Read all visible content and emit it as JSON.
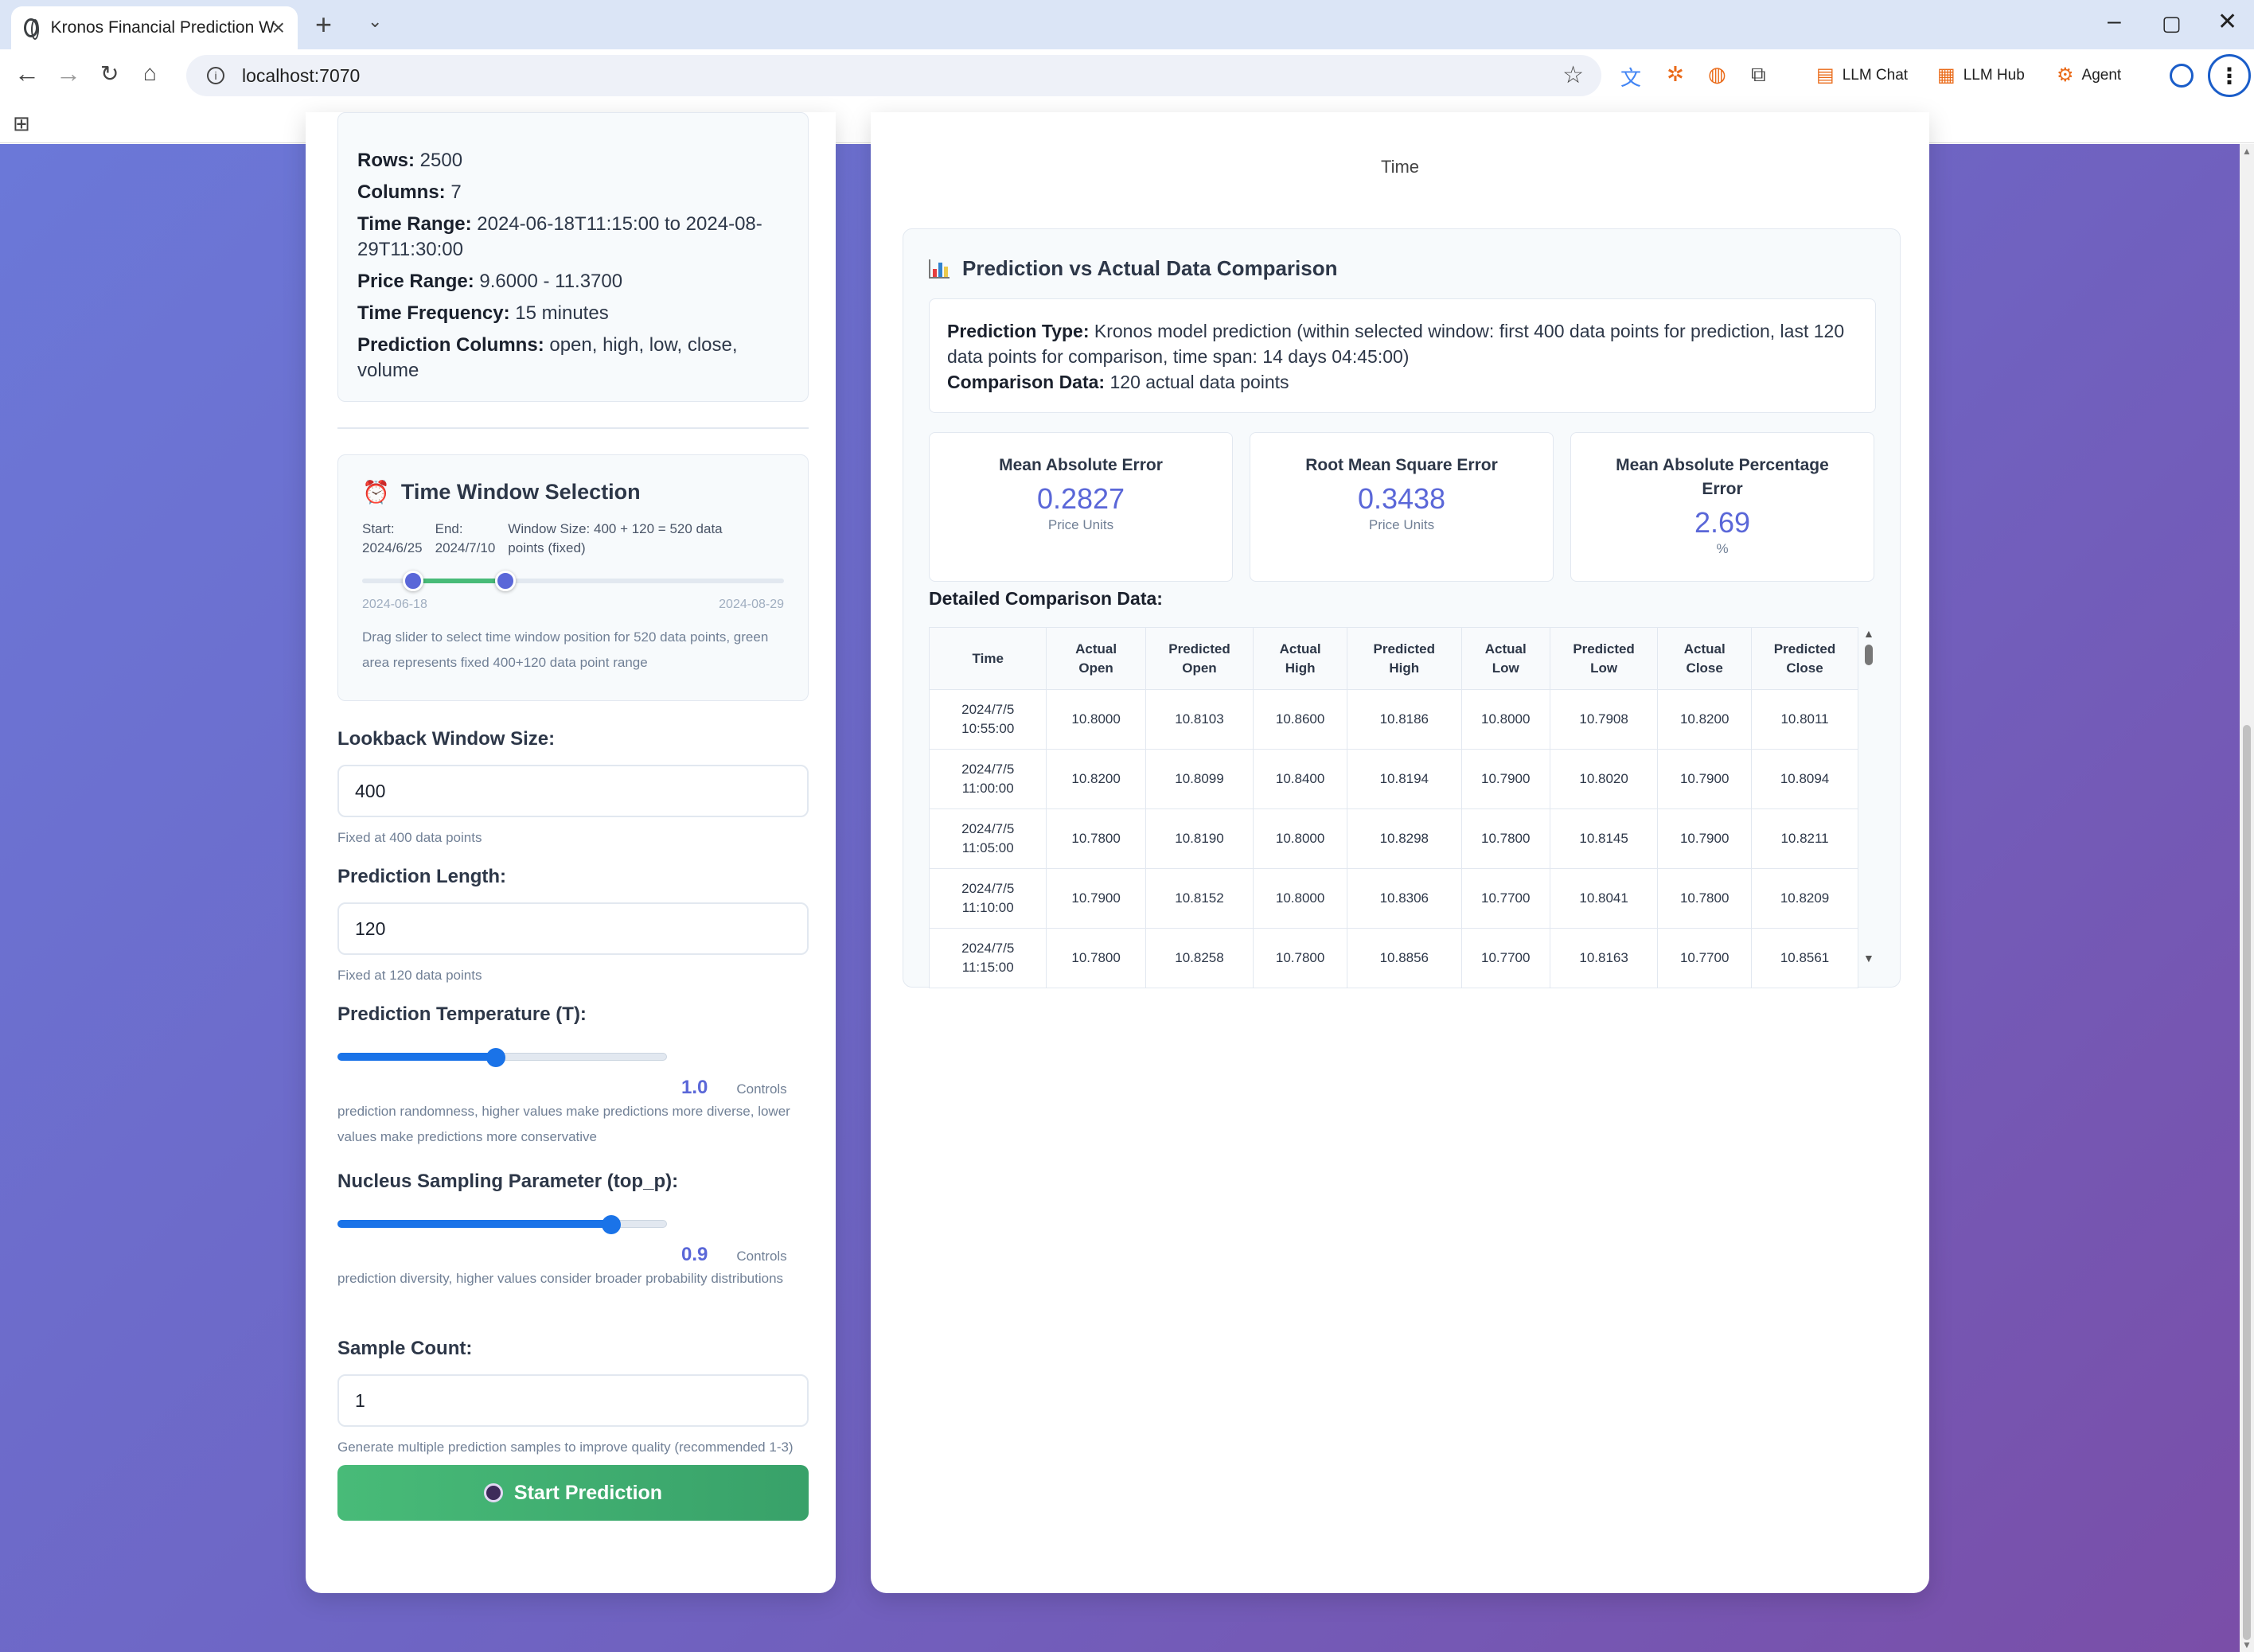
{
  "browser": {
    "tab_title": "Kronos Financial Prediction W",
    "url": "localhost:7070",
    "bookmarks": [
      {
        "label": "LLM Chat",
        "icon": "chat-icon"
      },
      {
        "label": "LLM Hub",
        "icon": "hub-icon"
      },
      {
        "label": "Agent",
        "icon": "agent-icon"
      }
    ]
  },
  "data_info": {
    "rows_label": "Rows:",
    "rows": "2500",
    "columns_label": "Columns:",
    "columns": "7",
    "time_range_label": "Time Range:",
    "time_range": "2024-06-18T11:15:00 to 2024-08-29T11:30:00",
    "price_range_label": "Price Range:",
    "price_range": "9.6000 - 11.3700",
    "time_frequency_label": "Time Frequency:",
    "time_frequency": "15 minutes",
    "prediction_columns_label": "Prediction Columns:",
    "prediction_columns": "open, high, low, close, volume"
  },
  "time_window": {
    "title": "Time Window Selection",
    "start_label": "Start:",
    "start": "2024/6/25",
    "end_label": "End:",
    "end": "2024/7/10",
    "window_size": "Window Size: 400 + 120 = 520 data points (fixed)",
    "tick_start": "2024-06-18",
    "tick_end": "2024-08-29",
    "range_start_fraction": 0.12,
    "range_end_fraction": 0.34,
    "description": "Drag slider to select time window position for 520 data points, green area represents fixed 400+120 data point range"
  },
  "lookback": {
    "label": "Lookback Window Size:",
    "value": "400",
    "hint": "Fixed at 400 data points"
  },
  "pred_length": {
    "label": "Prediction Length:",
    "value": "120",
    "hint": "Fixed at 120 data points"
  },
  "temperature": {
    "label": "Prediction Temperature (T):",
    "value": "1.0",
    "fraction": 0.48,
    "controls": "Controls",
    "hint": "prediction randomness, higher values make predictions more diverse, lower values make predictions more conservative"
  },
  "top_p": {
    "label": "Nucleus Sampling Parameter (top_p):",
    "value": "0.9",
    "fraction": 0.83,
    "controls": "Controls",
    "hint": "prediction diversity, higher values consider broader probability distributions"
  },
  "sample_count": {
    "label": "Sample Count:",
    "value": "1",
    "hint": "Generate multiple prediction samples to improve quality (recommended 1-3)"
  },
  "start_button": "Start Prediction",
  "chart_axis_label": "Time",
  "comparison": {
    "title": "Prediction vs Actual Data Comparison",
    "pred_type_label": "Prediction Type:",
    "pred_type": "Kronos model prediction (within selected window: first 400 data points for prediction, last 120 data points for comparison, time span: 14 days 04:45:00)",
    "cmp_data_label": "Comparison Data:",
    "cmp_data": "120 actual data points",
    "metrics": [
      {
        "name": "Mean Absolute Error",
        "value": "0.2827",
        "unit": "Price Units"
      },
      {
        "name": "Root Mean Square Error",
        "value": "0.3438",
        "unit": "Price Units"
      },
      {
        "name": "Mean Absolute Percentage Error",
        "value": "2.69",
        "unit": "%"
      }
    ],
    "detail_title": "Detailed Comparison Data:",
    "columns": [
      "Time",
      "Actual Open",
      "Predicted Open",
      "Actual High",
      "Predicted High",
      "Actual Low",
      "Predicted Low",
      "Actual Close",
      "Predicted Close"
    ],
    "rows": [
      [
        "2024/7/5 10:55:00",
        "10.8000",
        "10.8103",
        "10.8600",
        "10.8186",
        "10.8000",
        "10.7908",
        "10.8200",
        "10.8011"
      ],
      [
        "2024/7/5 11:00:00",
        "10.8200",
        "10.8099",
        "10.8400",
        "10.8194",
        "10.7900",
        "10.8020",
        "10.7900",
        "10.8094"
      ],
      [
        "2024/7/5 11:05:00",
        "10.7800",
        "10.8190",
        "10.8000",
        "10.8298",
        "10.7800",
        "10.8145",
        "10.7900",
        "10.8211"
      ],
      [
        "2024/7/5 11:10:00",
        "10.7900",
        "10.8152",
        "10.8000",
        "10.8306",
        "10.7700",
        "10.8041",
        "10.7800",
        "10.8209"
      ],
      [
        "2024/7/5 11:15:00",
        "10.7800",
        "10.8258",
        "10.7800",
        "10.8856",
        "10.7700",
        "10.8163",
        "10.7700",
        "10.8561"
      ]
    ]
  }
}
